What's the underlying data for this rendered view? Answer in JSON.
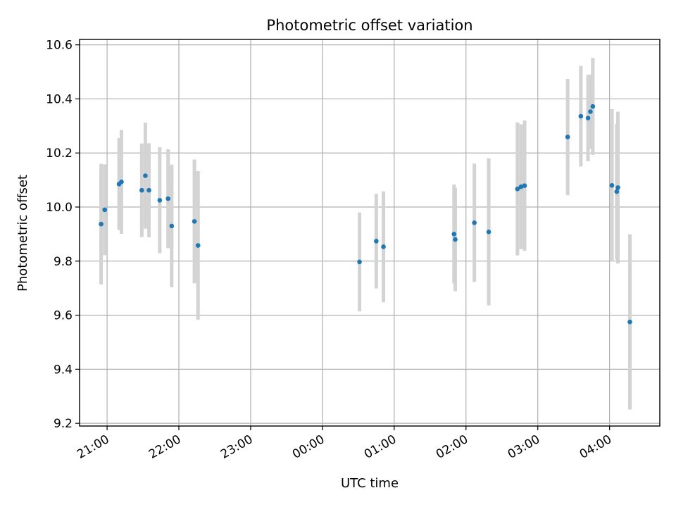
{
  "chart_data": {
    "type": "scatter",
    "title": "Photometric offset variation",
    "xlabel": "UTC time",
    "ylabel": "Photometric offset",
    "xlim": [
      "20:37",
      "04:42"
    ],
    "ylim": [
      9.19,
      10.62
    ],
    "grid": true,
    "x_ticks": [
      "21:00",
      "22:00",
      "23:00",
      "00:00",
      "01:00",
      "02:00",
      "03:00",
      "04:00"
    ],
    "y_ticks": [
      "9.2",
      "9.4",
      "9.6",
      "9.8",
      "10.0",
      "10.2",
      "10.4",
      "10.6"
    ],
    "colors": {
      "point": "#1f77b4",
      "errorbar": "#d3d3d3",
      "grid": "#b0b0b0"
    },
    "points": [
      {
        "time": "20:55",
        "y": 9.937,
        "err": 0.223
      },
      {
        "time": "20:58",
        "y": 9.99,
        "err": 0.168
      },
      {
        "time": "21:10",
        "y": 10.085,
        "err": 0.17
      },
      {
        "time": "21:12",
        "y": 10.093,
        "err": 0.192
      },
      {
        "time": "21:29",
        "y": 10.062,
        "err": 0.173
      },
      {
        "time": "21:32",
        "y": 10.116,
        "err": 0.196
      },
      {
        "time": "21:35",
        "y": 10.062,
        "err": 0.174
      },
      {
        "time": "21:44",
        "y": 10.025,
        "err": 0.196
      },
      {
        "time": "21:51",
        "y": 10.031,
        "err": 0.183
      },
      {
        "time": "21:54",
        "y": 9.93,
        "err": 0.227
      },
      {
        "time": "22:13",
        "y": 9.947,
        "err": 0.229
      },
      {
        "time": "22:16",
        "y": 9.858,
        "err": 0.275
      },
      {
        "time": "00:31",
        "y": 9.797,
        "err": 0.183
      },
      {
        "time": "00:45",
        "y": 9.874,
        "err": 0.175
      },
      {
        "time": "00:51",
        "y": 9.853,
        "err": 0.205
      },
      {
        "time": "01:50",
        "y": 9.9,
        "err": 0.183
      },
      {
        "time": "01:51",
        "y": 9.88,
        "err": 0.191
      },
      {
        "time": "02:07",
        "y": 9.942,
        "err": 0.219
      },
      {
        "time": "02:19",
        "y": 9.908,
        "err": 0.272
      },
      {
        "time": "02:43",
        "y": 10.067,
        "err": 0.246
      },
      {
        "time": "02:46",
        "y": 10.075,
        "err": 0.231
      },
      {
        "time": "02:49",
        "y": 10.079,
        "err": 0.241
      },
      {
        "time": "03:25",
        "y": 10.259,
        "err": 0.215
      },
      {
        "time": "03:36",
        "y": 10.336,
        "err": 0.186
      },
      {
        "time": "03:42",
        "y": 10.329,
        "err": 0.16
      },
      {
        "time": "03:44",
        "y": 10.353,
        "err": 0.137
      },
      {
        "time": "03:46",
        "y": 10.372,
        "err": 0.179
      },
      {
        "time": "04:02",
        "y": 10.08,
        "err": 0.282
      },
      {
        "time": "04:06",
        "y": 10.057,
        "err": 0.251
      },
      {
        "time": "04:07",
        "y": 10.072,
        "err": 0.281
      },
      {
        "time": "04:17",
        "y": 9.575,
        "err": 0.324
      }
    ]
  }
}
